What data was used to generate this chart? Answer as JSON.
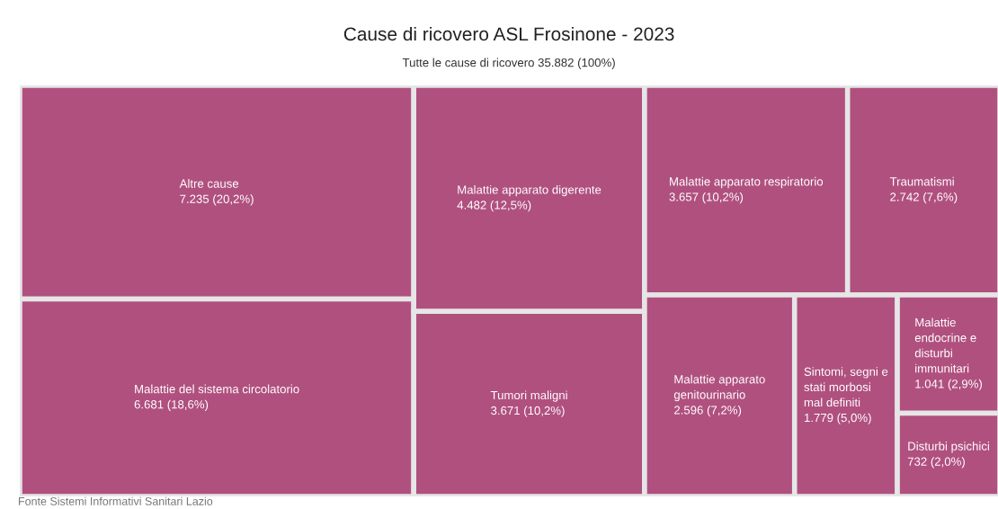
{
  "chart_data": {
    "type": "other",
    "title": "Cause di ricovero ASL Frosinone - 2023",
    "subtitle": "Tutte le cause di ricovero 35.882 (100%)",
    "categories": [
      "Altre cause",
      "Malattie del sistema circolatorio",
      "Malattie apparato digerente",
      "Tumori maligni",
      "Malattie apparato respiratorio",
      "Traumatismi",
      "Malattie apparato genitourinario",
      "Sintomi, segni e stati morbosi mal definiti",
      "Malattie endocrine e disturbi immunitari",
      "Disturbi psichici"
    ],
    "values": [
      7235,
      6681,
      4482,
      3671,
      3657,
      2742,
      2596,
      1779,
      1041,
      732
    ],
    "value_labels": [
      "7.235 (20,2%)",
      "6.681 (18,6%)",
      "4.482 (12,5%)",
      "3.671 (10,2%)",
      "3.657 (10,2%)",
      "2.742 (7,6%)",
      "2.596 (7,2%)",
      "1.779 (5,0%)",
      "1.041 (2,9%)",
      "732 (2,0%)"
    ],
    "color": "#b0507f",
    "annotations": [
      "Fonte Sistemi Informativi Sanitari Lazio"
    ]
  }
}
